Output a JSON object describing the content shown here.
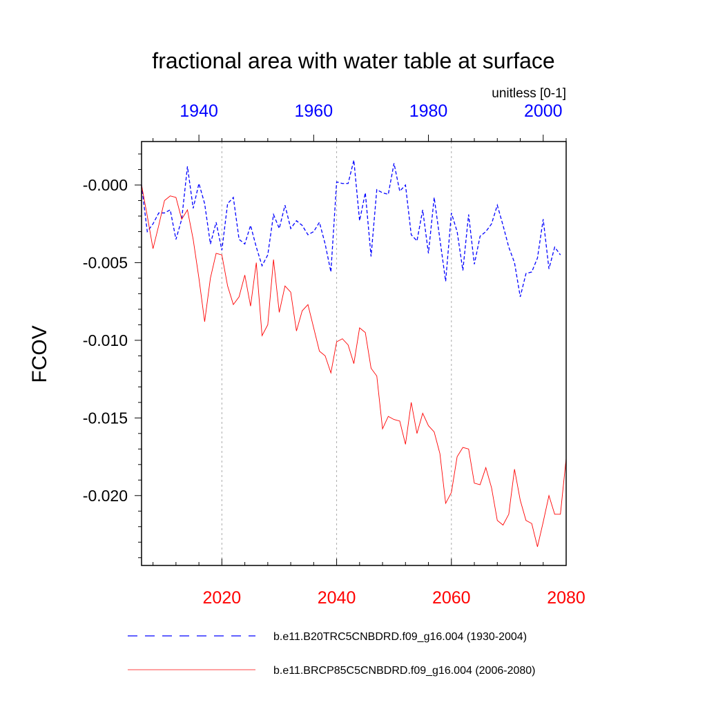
{
  "chart_data": {
    "type": "line",
    "title": "fractional area with water table at surface",
    "units": "unitless [0-1]",
    "ylabel": "FCOV",
    "ylim": [
      -0.0245,
      0.0028
    ],
    "yticks": [
      0,
      -0.005,
      -0.01,
      -0.015,
      -0.02
    ],
    "ytick_labels": [
      "-0.000",
      "-0.005",
      "-0.010",
      "-0.015",
      "-0.020"
    ],
    "bottom_axis": {
      "range": [
        2006,
        2080
      ],
      "ticks": [
        2020,
        2040,
        2060,
        2080
      ],
      "tick_labels": [
        "2020",
        "2040",
        "2060",
        "2080"
      ],
      "color": "#ff0000"
    },
    "top_axis": {
      "range": [
        1930,
        2004
      ],
      "ticks": [
        1940,
        1960,
        1980,
        2000
      ],
      "tick_labels": [
        "1940",
        "1960",
        "1980",
        "2000"
      ],
      "color": "#0000ff"
    },
    "gridlines_x": [
      2020,
      2040,
      2060
    ],
    "series": [
      {
        "name": "b.e11.B20TRC5CNBDRD.f09_g16.004 (1930-2004)",
        "axis": "top",
        "color": "#0000ff",
        "dash": "dashed",
        "x_start": 1930,
        "values": [
          0.0,
          -0.003,
          -0.0025,
          -0.0018,
          -0.0018,
          -0.0016,
          -0.0035,
          -0.0022,
          0.0012,
          -0.0015,
          0.0001,
          -0.0012,
          -0.0038,
          -0.0024,
          -0.0042,
          -0.0012,
          -0.0008,
          -0.0035,
          -0.0038,
          -0.0026,
          -0.004,
          -0.0052,
          -0.0045,
          -0.0019,
          -0.0028,
          -0.0013,
          -0.0028,
          -0.0023,
          -0.0026,
          -0.0032,
          -0.003,
          -0.0024,
          -0.0038,
          -0.0056,
          0.0002,
          0.0001,
          0.0001,
          0.0016,
          -0.0023,
          -0.0005,
          -0.0046,
          -0.0003,
          -0.0005,
          -0.0006,
          0.0014,
          -0.0004,
          0.0,
          -0.0032,
          -0.0036,
          -0.0016,
          -0.0044,
          -0.0008,
          -0.0035,
          -0.0062,
          -0.0018,
          -0.003,
          -0.0055,
          -0.0019,
          -0.0051,
          -0.0033,
          -0.003,
          -0.0025,
          -0.0013,
          -0.0026,
          -0.004,
          -0.005,
          -0.0072,
          -0.0057,
          -0.0056,
          -0.0047,
          -0.0022,
          -0.0054,
          -0.004,
          -0.0045
        ]
      },
      {
        "name": "b.e11.BRCP85C5CNBDRD.f09_g16.004 (2006-2080)",
        "axis": "bottom",
        "color": "#ff0000",
        "dash": "solid",
        "x_start": 2006,
        "values": [
          0.0,
          -0.002,
          -0.0041,
          -0.0026,
          -0.001,
          -0.0007,
          -0.0008,
          -0.0022,
          -0.0016,
          -0.0035,
          -0.006,
          -0.0088,
          -0.006,
          -0.0044,
          -0.0045,
          -0.0065,
          -0.0077,
          -0.0072,
          -0.0058,
          -0.0078,
          -0.005,
          -0.0097,
          -0.009,
          -0.0048,
          -0.0082,
          -0.0065,
          -0.0069,
          -0.0094,
          -0.0081,
          -0.0077,
          -0.0092,
          -0.0107,
          -0.011,
          -0.0121,
          -0.0101,
          -0.0099,
          -0.0103,
          -0.0115,
          -0.0092,
          -0.0095,
          -0.0118,
          -0.0123,
          -0.0157,
          -0.0149,
          -0.0151,
          -0.0152,
          -0.0167,
          -0.014,
          -0.016,
          -0.0147,
          -0.0155,
          -0.0159,
          -0.0173,
          -0.0205,
          -0.0198,
          -0.0175,
          -0.0169,
          -0.017,
          -0.0192,
          -0.0193,
          -0.0182,
          -0.0195,
          -0.0216,
          -0.0219,
          -0.0212,
          -0.0183,
          -0.0203,
          -0.0216,
          -0.0218,
          -0.0233,
          -0.0217,
          -0.02,
          -0.0212,
          -0.0212,
          -0.0176
        ]
      }
    ],
    "legend": [
      {
        "label": "b.e11.B20TRC5CNBDRD.f09_g16.004 (1930-2004)",
        "color": "#0000ff",
        "dash": "dashed"
      },
      {
        "label": "b.e11.BRCP85C5CNBDRD.f09_g16.004 (2006-2080)",
        "color": "#ff0000",
        "dash": "solid"
      }
    ]
  }
}
